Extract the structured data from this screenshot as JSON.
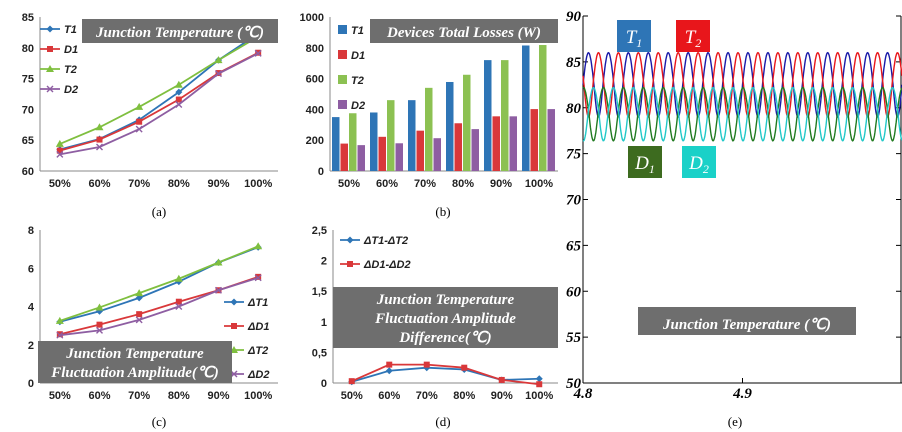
{
  "chart_data": [
    {
      "id": "a",
      "type": "line",
      "caption": "(a)",
      "title": "Junction Temperature (℃)",
      "categories": [
        "50%",
        "60%",
        "70%",
        "80%",
        "90%",
        "100%"
      ],
      "ylim": [
        60,
        85
      ],
      "yticks": [
        60,
        65,
        70,
        75,
        80,
        85
      ],
      "legend_position": "top-left",
      "series": [
        {
          "name": "T1",
          "color": "#2e75b6",
          "marker": "diamond",
          "values": [
            63.5,
            65.2,
            68.3,
            72.8,
            78.0,
            82.3
          ]
        },
        {
          "name": "D1",
          "color": "#d9383a",
          "marker": "square",
          "values": [
            63.3,
            65.1,
            68.0,
            71.6,
            75.9,
            79.2
          ]
        },
        {
          "name": "T2",
          "color": "#7fbf3f",
          "marker": "triangle",
          "values": [
            64.4,
            67.1,
            70.4,
            74.0,
            78.0,
            81.8
          ]
        },
        {
          "name": "D2",
          "color": "#8e5ea2",
          "marker": "x",
          "values": [
            62.7,
            63.9,
            66.8,
            70.8,
            75.8,
            79.1
          ]
        }
      ]
    },
    {
      "id": "b",
      "type": "bar",
      "caption": "(b)",
      "title": "Devices Total Losses (W)",
      "categories": [
        "50%",
        "60%",
        "70%",
        "80%",
        "90%",
        "100%"
      ],
      "ylim": [
        0,
        1000
      ],
      "yticks": [
        0,
        200,
        400,
        600,
        800,
        1000
      ],
      "legend_position": "top-left",
      "series": [
        {
          "name": "T1",
          "color": "#2e75b6",
          "values": [
            350,
            380,
            460,
            578,
            720,
            815
          ]
        },
        {
          "name": "D1",
          "color": "#d9383a",
          "values": [
            178,
            222,
            262,
            310,
            355,
            402
          ]
        },
        {
          "name": "T2",
          "color": "#8cc152",
          "values": [
            375,
            460,
            540,
            625,
            720,
            818
          ]
        },
        {
          "name": "D2",
          "color": "#8e5ea2",
          "values": [
            168,
            180,
            213,
            272,
            355,
            402
          ]
        }
      ]
    },
    {
      "id": "c",
      "type": "line",
      "caption": "(c)",
      "title": "Junction Temperature Fluctuation Amplitude(℃)",
      "title_lines": [
        "Junction Temperature",
        "Fluctuation Amplitude(℃)"
      ],
      "categories": [
        "50%",
        "60%",
        "70%",
        "80%",
        "90%",
        "100%"
      ],
      "ylim": [
        0,
        8
      ],
      "yticks": [
        0,
        2,
        4,
        6,
        8
      ],
      "legend_position": "bottom-right",
      "series": [
        {
          "name": "ΔT1",
          "color": "#2e75b6",
          "marker": "diamond",
          "values": [
            3.2,
            3.75,
            4.45,
            5.3,
            6.3,
            7.1
          ]
        },
        {
          "name": "ΔD1",
          "color": "#d9383a",
          "marker": "square",
          "values": [
            2.55,
            3.05,
            3.6,
            4.25,
            4.85,
            5.55
          ]
        },
        {
          "name": "ΔT2",
          "color": "#7fbf3f",
          "marker": "triangle",
          "values": [
            3.25,
            3.95,
            4.7,
            5.45,
            6.3,
            7.15
          ]
        },
        {
          "name": "ΔD2",
          "color": "#8e5ea2",
          "marker": "x",
          "values": [
            2.5,
            2.75,
            3.3,
            4.0,
            4.85,
            5.5
          ]
        }
      ]
    },
    {
      "id": "d",
      "type": "line",
      "caption": "(d)",
      "title": "Junction Temperature Fluctuation Amplitude Difference(℃)",
      "title_lines": [
        "Junction Temperature",
        "Fluctuation Amplitude",
        "Difference(℃)"
      ],
      "categories": [
        "50%",
        "60%",
        "70%",
        "80%",
        "90%",
        "100%"
      ],
      "ylim": [
        0,
        2.5
      ],
      "yticks": [
        0,
        0.5,
        1,
        1.5,
        2,
        2.5
      ],
      "ytick_labels": [
        "0",
        "0,5",
        "1",
        "1,5",
        "2",
        "2,5"
      ],
      "legend_position": "top-left",
      "series": [
        {
          "name": "ΔT1-ΔT2",
          "color": "#2e75b6",
          "marker": "diamond",
          "values": [
            0.02,
            0.2,
            0.25,
            0.22,
            0.05,
            0.07
          ]
        },
        {
          "name": "ΔD1-ΔD2",
          "color": "#d9383a",
          "marker": "square",
          "values": [
            0.03,
            0.3,
            0.3,
            0.25,
            0.05,
            -0.02
          ]
        }
      ]
    },
    {
      "id": "e",
      "type": "line",
      "caption": "(e)",
      "title": "Junction Temperature (℃)",
      "xlim": [
        4.8,
        5.0
      ],
      "xticks": [
        4.8,
        4.9
      ],
      "ylim": [
        50,
        90
      ],
      "yticks": [
        50,
        55,
        60,
        65,
        70,
        75,
        80,
        85,
        90
      ],
      "legend_position": "top-left",
      "cycles": 16,
      "series": [
        {
          "name": "T1",
          "color": "#1a1aa8",
          "mean": 82.5,
          "amplitude": 3.5,
          "phase": 0.0
        },
        {
          "name": "T2",
          "color": "#e8161b",
          "mean": 82.5,
          "amplitude": 3.5,
          "phase": 0.5
        },
        {
          "name": "D1",
          "color": "#1f7a1f",
          "mean": 79.3,
          "amplitude": 2.9,
          "phase": 0.25
        },
        {
          "name": "D2",
          "color": "#20c8c8",
          "mean": 79.3,
          "amplitude": 2.9,
          "phase": 0.75
        }
      ],
      "tag_colors": {
        "T1": "#2e75b6",
        "T2": "#e8161b",
        "D1": "#3d6b1f",
        "D2": "#1ad1c8"
      }
    }
  ]
}
